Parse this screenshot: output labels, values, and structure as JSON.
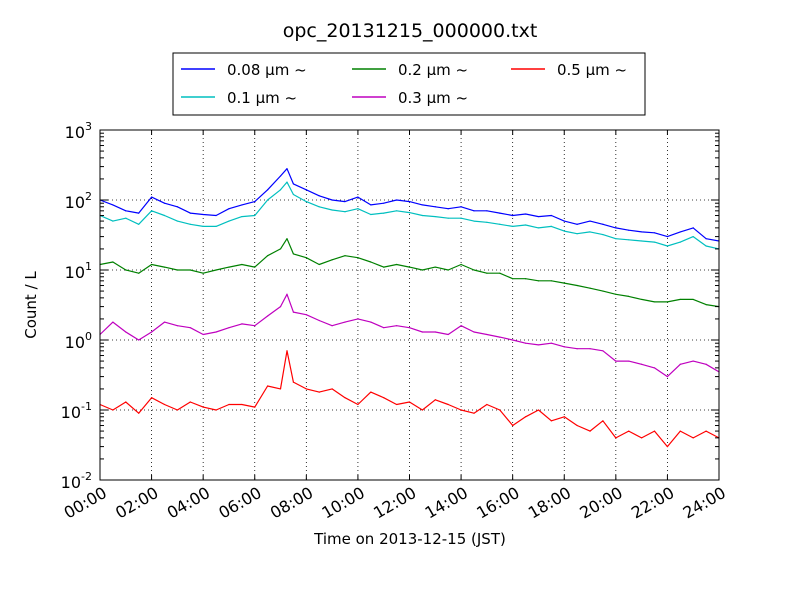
{
  "chart_data": {
    "type": "line",
    "title": "opc_20131215_000000.txt",
    "xlabel": "Time on 2013-12-15 (JST)",
    "ylabel": "Count / L",
    "x_ticks": [
      "00:00",
      "02:00",
      "04:00",
      "06:00",
      "08:00",
      "10:00",
      "12:00",
      "14:00",
      "16:00",
      "18:00",
      "20:00",
      "22:00",
      "24:00"
    ],
    "y_ticks": [
      {
        "base": "10",
        "exp": "3"
      },
      {
        "base": "10",
        "exp": "2"
      },
      {
        "base": "10",
        "exp": "1"
      },
      {
        "base": "10",
        "exp": "0"
      },
      {
        "base": "10",
        "exp": "-1"
      },
      {
        "base": "10",
        "exp": "-2"
      }
    ],
    "xlim": [
      "00:00",
      "24:00"
    ],
    "ylim": [
      0.01,
      1000
    ],
    "y_scale": "log",
    "grid": true,
    "legend_position": "top-center",
    "series": [
      {
        "name": "0.08 μm ~",
        "color": "#0000ff",
        "x": [
          "00:00",
          "00:30",
          "01:00",
          "01:30",
          "02:00",
          "02:30",
          "03:00",
          "03:30",
          "04:00",
          "04:30",
          "05:00",
          "05:30",
          "06:00",
          "06:30",
          "07:00",
          "07:15",
          "07:30",
          "08:00",
          "08:30",
          "09:00",
          "09:30",
          "10:00",
          "10:30",
          "11:00",
          "11:30",
          "12:00",
          "12:30",
          "13:00",
          "13:30",
          "14:00",
          "14:30",
          "15:00",
          "15:30",
          "16:00",
          "16:30",
          "17:00",
          "17:30",
          "18:00",
          "18:30",
          "19:00",
          "19:30",
          "20:00",
          "20:30",
          "21:00",
          "21:30",
          "22:00",
          "22:30",
          "23:00",
          "23:30",
          "24:00"
        ],
        "y": [
          100,
          85,
          70,
          65,
          110,
          90,
          80,
          65,
          62,
          60,
          75,
          85,
          95,
          140,
          220,
          280,
          170,
          140,
          115,
          100,
          95,
          110,
          85,
          90,
          100,
          95,
          85,
          80,
          75,
          80,
          70,
          70,
          65,
          60,
          63,
          58,
          60,
          50,
          45,
          50,
          45,
          40,
          37,
          35,
          34,
          30,
          35,
          40,
          28,
          26
        ]
      },
      {
        "name": "0.1 μm ~",
        "color": "#00bfbf",
        "x": [
          "00:00",
          "00:30",
          "01:00",
          "01:30",
          "02:00",
          "02:30",
          "03:00",
          "03:30",
          "04:00",
          "04:30",
          "05:00",
          "05:30",
          "06:00",
          "06:30",
          "07:00",
          "07:15",
          "07:30",
          "08:00",
          "08:30",
          "09:00",
          "09:30",
          "10:00",
          "10:30",
          "11:00",
          "11:30",
          "12:00",
          "12:30",
          "13:00",
          "13:30",
          "14:00",
          "14:30",
          "15:00",
          "15:30",
          "16:00",
          "16:30",
          "17:00",
          "17:30",
          "18:00",
          "18:30",
          "19:00",
          "19:30",
          "20:00",
          "20:30",
          "21:00",
          "21:30",
          "22:00",
          "22:30",
          "23:00",
          "23:30",
          "24:00"
        ],
        "y": [
          60,
          50,
          55,
          45,
          70,
          60,
          50,
          45,
          42,
          42,
          50,
          58,
          60,
          100,
          140,
          180,
          120,
          95,
          80,
          72,
          68,
          75,
          62,
          65,
          70,
          66,
          60,
          58,
          55,
          55,
          50,
          48,
          45,
          42,
          44,
          40,
          42,
          36,
          33,
          35,
          32,
          28,
          27,
          26,
          25,
          22,
          25,
          30,
          22,
          20
        ]
      },
      {
        "name": "0.2 μm ~",
        "color": "#008000",
        "x": [
          "00:00",
          "00:30",
          "01:00",
          "01:30",
          "02:00",
          "02:30",
          "03:00",
          "03:30",
          "04:00",
          "04:30",
          "05:00",
          "05:30",
          "06:00",
          "06:30",
          "07:00",
          "07:15",
          "07:30",
          "08:00",
          "08:30",
          "09:00",
          "09:30",
          "10:00",
          "10:30",
          "11:00",
          "11:30",
          "12:00",
          "12:30",
          "13:00",
          "13:30",
          "14:00",
          "14:30",
          "15:00",
          "15:30",
          "16:00",
          "16:30",
          "17:00",
          "17:30",
          "18:00",
          "18:30",
          "19:00",
          "19:30",
          "20:00",
          "20:30",
          "21:00",
          "21:30",
          "22:00",
          "22:30",
          "23:00",
          "23:30",
          "24:00"
        ],
        "y": [
          12,
          13,
          10,
          9,
          12,
          11,
          10,
          10,
          9,
          10,
          11,
          12,
          11,
          16,
          20,
          28,
          17,
          15,
          12,
          14,
          16,
          15,
          13,
          11,
          12,
          11,
          10,
          11,
          10,
          12,
          10,
          9,
          9,
          7.5,
          7.5,
          7,
          7,
          6.5,
          6,
          5.5,
          5,
          4.5,
          4.2,
          3.8,
          3.5,
          3.5,
          3.8,
          3.8,
          3.2,
          3
        ]
      },
      {
        "name": "0.3 μm ~",
        "color": "#bf00bf",
        "x": [
          "00:00",
          "00:30",
          "01:00",
          "01:30",
          "02:00",
          "02:30",
          "03:00",
          "03:30",
          "04:00",
          "04:30",
          "05:00",
          "05:30",
          "06:00",
          "06:30",
          "07:00",
          "07:15",
          "07:30",
          "08:00",
          "08:30",
          "09:00",
          "09:30",
          "10:00",
          "10:30",
          "11:00",
          "11:30",
          "12:00",
          "12:30",
          "13:00",
          "13:30",
          "14:00",
          "14:30",
          "15:00",
          "15:30",
          "16:00",
          "16:30",
          "17:00",
          "17:30",
          "18:00",
          "18:30",
          "19:00",
          "19:30",
          "20:00",
          "20:30",
          "21:00",
          "21:30",
          "22:00",
          "22:30",
          "23:00",
          "23:30",
          "24:00"
        ],
        "y": [
          1.2,
          1.8,
          1.3,
          1.0,
          1.3,
          1.8,
          1.6,
          1.5,
          1.2,
          1.3,
          1.5,
          1.7,
          1.6,
          2.2,
          3,
          4.5,
          2.5,
          2.3,
          1.9,
          1.6,
          1.8,
          2,
          1.8,
          1.5,
          1.6,
          1.5,
          1.3,
          1.3,
          1.2,
          1.6,
          1.3,
          1.2,
          1.1,
          1.0,
          0.9,
          0.85,
          0.9,
          0.8,
          0.75,
          0.75,
          0.7,
          0.5,
          0.5,
          0.45,
          0.4,
          0.3,
          0.45,
          0.5,
          0.45,
          0.35
        ]
      },
      {
        "name": "0.5 μm ~",
        "color": "#ff0000",
        "x": [
          "00:00",
          "00:30",
          "01:00",
          "01:30",
          "02:00",
          "02:30",
          "03:00",
          "03:30",
          "04:00",
          "04:30",
          "05:00",
          "05:30",
          "06:00",
          "06:30",
          "07:00",
          "07:15",
          "07:30",
          "08:00",
          "08:30",
          "09:00",
          "09:30",
          "10:00",
          "10:30",
          "11:00",
          "11:30",
          "12:00",
          "12:30",
          "13:00",
          "13:30",
          "14:00",
          "14:30",
          "15:00",
          "15:30",
          "16:00",
          "16:30",
          "17:00",
          "17:30",
          "18:00",
          "18:30",
          "19:00",
          "19:30",
          "20:00",
          "20:30",
          "21:00",
          "21:30",
          "22:00",
          "22:30",
          "23:00",
          "23:30",
          "24:00"
        ],
        "y": [
          0.12,
          0.1,
          0.13,
          0.09,
          0.15,
          0.12,
          0.1,
          0.13,
          0.11,
          0.1,
          0.12,
          0.12,
          0.11,
          0.22,
          0.2,
          0.7,
          0.25,
          0.2,
          0.18,
          0.2,
          0.15,
          0.12,
          0.18,
          0.15,
          0.12,
          0.13,
          0.1,
          0.14,
          0.12,
          0.1,
          0.09,
          0.12,
          0.1,
          0.06,
          0.08,
          0.1,
          0.07,
          0.08,
          0.06,
          0.05,
          0.07,
          0.04,
          0.05,
          0.04,
          0.05,
          0.03,
          0.05,
          0.04,
          0.05,
          0.04
        ]
      }
    ]
  }
}
